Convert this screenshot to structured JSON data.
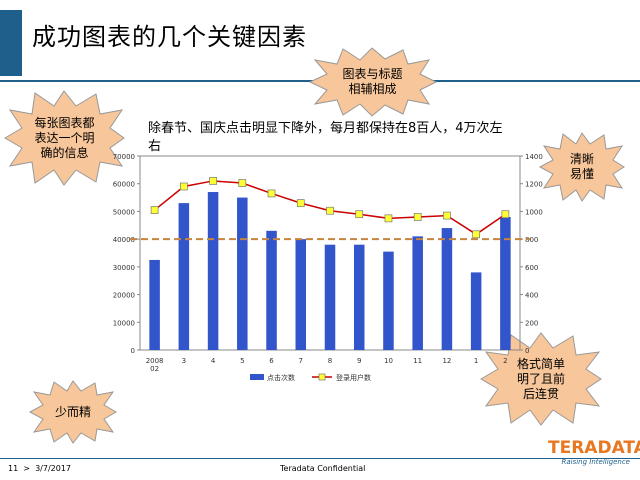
{
  "title": "成功图表的几个关键因素",
  "caption": "除春节、国庆点击明显下降外，每月都保持在8百人，4万次左右",
  "callouts": {
    "top_center": [
      "图表与标题",
      "相辅相成"
    ],
    "top_left": [
      "每张图表都",
      "表达一个明",
      "确的信息"
    ],
    "right_top": [
      "清晰",
      "易懂"
    ],
    "right_bottom": [
      "格式简单",
      "明了且前",
      "后连贯"
    ],
    "bottom_left": [
      "少而精"
    ]
  },
  "colors": {
    "accent": "#1f5f8b",
    "bar": "#3355cc",
    "line": "#cc0000",
    "marker": "#ffff33",
    "burst": "#f7c69a",
    "reference": "#c8843c"
  },
  "chart_data": {
    "type": "bar",
    "categories": [
      "2008\n02",
      "3",
      "4",
      "5",
      "6",
      "7",
      "8",
      "9",
      "10",
      "11",
      "12",
      "1",
      "2"
    ],
    "series": [
      {
        "name": "点击次数",
        "type": "bar",
        "axis": "left",
        "values": [
          32500,
          53000,
          57000,
          55000,
          43000,
          40000,
          38000,
          38000,
          35500,
          41000,
          44000,
          28000,
          48000
        ]
      },
      {
        "name": "登录用户数",
        "type": "line",
        "axis": "right",
        "values": [
          1010,
          1180,
          1220,
          1205,
          1130,
          1060,
          1005,
          980,
          950,
          960,
          970,
          835,
          980
        ]
      }
    ],
    "left_ticks": [
      "0",
      "10000",
      "20000",
      "30000",
      "40000",
      "50000",
      "60000",
      "70000"
    ],
    "right_ticks": [
      "0",
      "200",
      "400",
      "600",
      "800",
      "1000",
      "1200",
      "1400"
    ],
    "ylim_left": [
      0,
      70000
    ],
    "ylim_right": [
      0,
      1400
    ],
    "reference_line_left": 40000,
    "legend": "bottom"
  },
  "footer": {
    "page": "11",
    "separator": ">",
    "date": "3/7/2017",
    "confidential": "Teradata Confidential"
  },
  "logo": {
    "word": "TERADATA",
    "tagline": "Raising Intelligence"
  }
}
